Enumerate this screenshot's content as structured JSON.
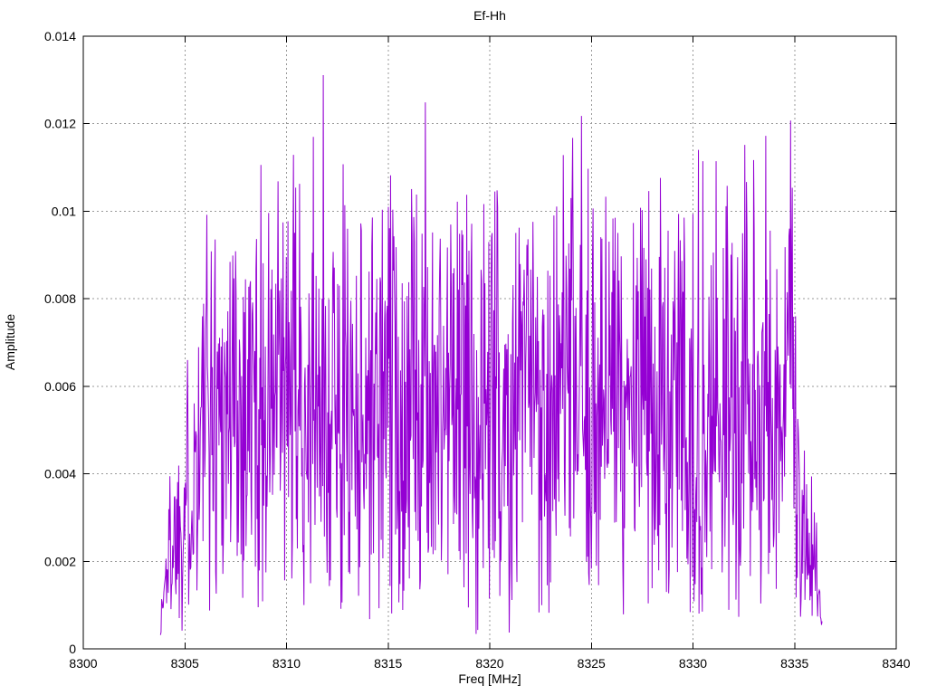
{
  "chart_data": {
    "type": "line",
    "title": "Ef-Hh",
    "xlabel": "Freq [MHz]",
    "ylabel": "Amplitude",
    "xlim": [
      8300,
      8340
    ],
    "ylim": [
      0,
      0.014
    ],
    "x_ticks": [
      "8300",
      "8305",
      "8310",
      "8315",
      "8320",
      "8325",
      "8330",
      "8335",
      "8340"
    ],
    "y_ticks": [
      "0",
      "0.002",
      "0.004",
      "0.006",
      "0.008",
      "0.01",
      "0.012",
      "0.014"
    ],
    "grid": true,
    "grid_style": "dotted",
    "grid_color": "#999999",
    "border_color": "#000000",
    "legend": "none",
    "background": "#ffffff",
    "series": [
      {
        "name": "Ef-Hh",
        "color": "#9400d3",
        "x_start": 8303.8,
        "x_end": 8336.35,
        "points": 1200,
        "seed": 1337,
        "noise_sigma": 0.36,
        "amplitude_scale": 0.014,
        "peak_amplitude": 0.0126,
        "mean_amplitude": 0.0057,
        "min_amplitude": 0.0002,
        "envelope_keypoints": [
          [
            8303.8,
            0.1
          ],
          [
            8304.2,
            0.4
          ],
          [
            8304.8,
            0.55
          ],
          [
            8306.2,
            1.0
          ],
          [
            8334.9,
            1.0
          ],
          [
            8335.4,
            0.5
          ],
          [
            8336.0,
            0.32
          ],
          [
            8336.35,
            0.06
          ]
        ]
      }
    ]
  }
}
